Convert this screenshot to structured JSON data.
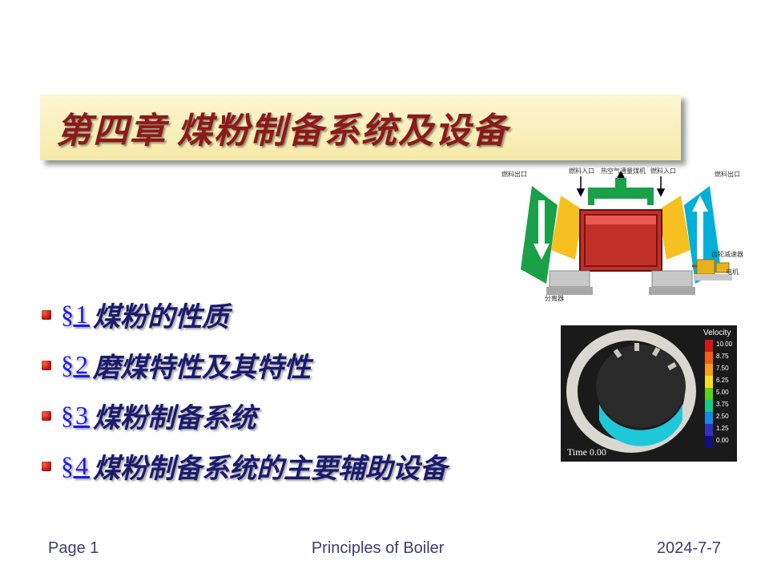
{
  "title": "第四章  煤粉制备系统及设备",
  "title_color": "#8b1a1a",
  "banner_bg_top": "#fdf7d3",
  "banner_bg_bottom": "#f5e9a8",
  "toc": [
    {
      "num": "§1",
      "title": "煤粉的性质"
    },
    {
      "num": "§2",
      "title": "磨煤特性及其特性"
    },
    {
      "num": "§3",
      "title": "煤粉制备系统"
    },
    {
      "num": "§4",
      "title": "煤粉制备系统的主要辅助设备"
    }
  ],
  "link_color": "#1a1af0",
  "section_title_color": "#1a1a6f",
  "bullet_color": "#b01010",
  "footer": {
    "page": "Page 1",
    "center": "Principles of Boiler",
    "date": "2024-7-7",
    "color": "#403b70"
  },
  "diagram1": {
    "frame_color": "#c03028",
    "duct_green": "#1aa048",
    "duct_cyan": "#00b0d8",
    "duct_yellow": "#f5c020",
    "base_gray": "#c8c8c8",
    "labels": {
      "tl": "燃料出口",
      "tc1": "燃料入口",
      "tc2": "热空气通量煤机",
      "tr1": "燃料入口",
      "tr2": "燃料出口",
      "r1": "齿轮减速器",
      "r2": "电机",
      "bl": "分离器"
    }
  },
  "diagram2": {
    "bg": "#1a1a1a",
    "drum_outer": "#d8d8d0",
    "fill_color": "#1ec8d8",
    "time_label": "Time 0.00",
    "legend_title": "Velocity",
    "legend_values": [
      "10.00",
      "8.75",
      "7.50",
      "6.25",
      "5.00",
      "3.75",
      "2.50",
      "1.25",
      "0.00"
    ],
    "legend_colors": [
      "#d01818",
      "#f06018",
      "#f8a018",
      "#f8e018",
      "#60d018",
      "#18c888",
      "#1888e8",
      "#3030c0",
      "#101080"
    ]
  }
}
